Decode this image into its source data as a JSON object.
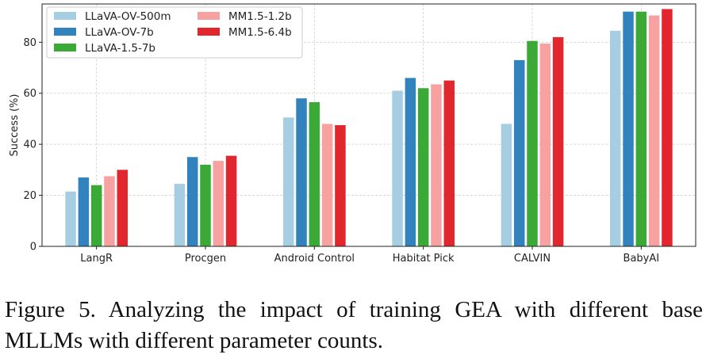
{
  "chart_data": {
    "type": "bar",
    "title": "",
    "xlabel": "",
    "ylabel": "Success (%)",
    "ylim": [
      0,
      95
    ],
    "yticks": [
      0,
      20,
      40,
      60,
      80
    ],
    "grid": true,
    "legend_placement": "top-left",
    "categories": [
      "LangR",
      "Procgen",
      "Android Control",
      "Habitat Pick",
      "CALVIN",
      "BabyAI"
    ],
    "series": [
      {
        "name": "LLaVA-OV-500m",
        "color": "#a6cee3",
        "values": [
          21.5,
          24.5,
          50.5,
          61,
          48,
          84.5
        ]
      },
      {
        "name": "LLaVA-OV-7b",
        "color": "#3182bd",
        "values": [
          27,
          35,
          58,
          66,
          73,
          92
        ]
      },
      {
        "name": "LLaVA-1.5-7b",
        "color": "#3aa935",
        "values": [
          24,
          32,
          56.5,
          62,
          80.5,
          92
        ]
      },
      {
        "name": "MM1.5-1.2b",
        "color": "#f7a1a1",
        "values": [
          27.5,
          33.5,
          48,
          63.5,
          79.5,
          90.5
        ]
      },
      {
        "name": "MM1.5-6.4b",
        "color": "#e1262e",
        "values": [
          30,
          35.5,
          47.5,
          65,
          82,
          93
        ]
      }
    ]
  },
  "caption": {
    "text": "Figure 5.  Analyzing the impact of training GEA with different base MLLMs with different parameter counts."
  }
}
